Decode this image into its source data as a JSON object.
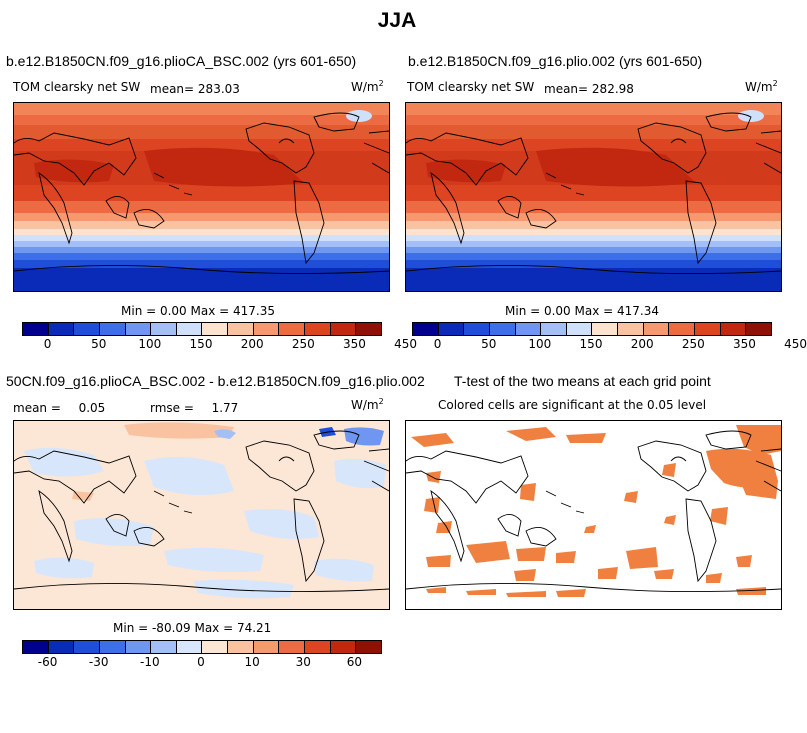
{
  "figure": {
    "title": "JJA"
  },
  "panels": [
    {
      "title": "b.e12.B1850CN.f09_g16.plioCA_BSC.002 (yrs 601-650)",
      "variable": "TOM clearsky net SW",
      "mean_label": "mean=",
      "mean_value": "283.03",
      "units_base": "W/m",
      "units_exp": "2",
      "stats": "Min =    0.00 Max = 417.35",
      "colorbar_ticks": [
        "0",
        "50",
        "100",
        "150",
        "200",
        "250",
        "350",
        "450"
      ]
    },
    {
      "title": "b.e12.B1850CN.f09_g16.plio.002 (yrs 601-650)",
      "variable": "TOM clearsky net SW",
      "mean_label": "mean=",
      "mean_value": "282.98",
      "units_base": "W/m",
      "units_exp": "2",
      "stats": "Min =    0.00 Max = 417.34",
      "colorbar_ticks": [
        "0",
        "50",
        "100",
        "150",
        "200",
        "250",
        "350",
        "450"
      ]
    },
    {
      "title": "50CN.f09_g16.plioCA_BSC.002 - b.e12.B1850CN.f09_g16.plio.002",
      "mean_label": "mean =",
      "mean_value": "0.05",
      "rmse_label": "rmse =",
      "rmse_value": "1.77",
      "units_base": "W/m",
      "units_exp": "2",
      "stats": "Min = -80.09 Max =  74.21",
      "colorbar_ticks": [
        "-60",
        "-30",
        "-10",
        "0",
        "10",
        "30",
        "60"
      ]
    },
    {
      "title": "T-test of the two means at each grid point",
      "subtitle": "Colored cells are significant at the 0.05 level"
    }
  ],
  "colors": {
    "abs_scale": [
      "#00008f",
      "#0a2bb8",
      "#1f4fd8",
      "#3d6fe8",
      "#6f96f0",
      "#a3bff5",
      "#cfe0fa",
      "#fce3cf",
      "#f9c3a1",
      "#f49a6e",
      "#ec6b43",
      "#dd4422",
      "#c2280f",
      "#8f1005"
    ],
    "diff_scale": [
      "#00008f",
      "#0a2bb8",
      "#1f4fd8",
      "#3d6fe8",
      "#6f96f0",
      "#a3bff5",
      "#d8e6fb",
      "#fce6d5",
      "#f9c3a1",
      "#f49a6e",
      "#ec6b43",
      "#dd4422",
      "#c2280f",
      "#8f1005"
    ],
    "ttest": "#f08040"
  }
}
